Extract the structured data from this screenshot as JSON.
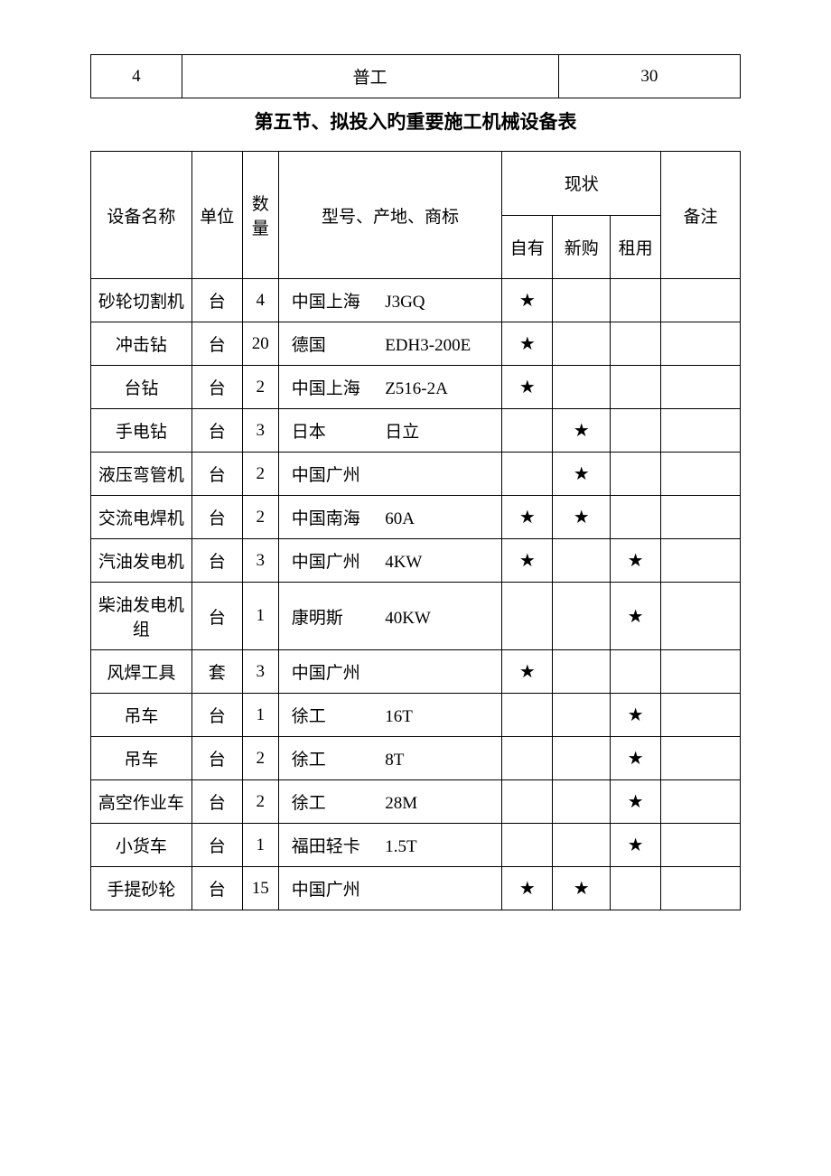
{
  "top_row": {
    "num": "4",
    "label": "普工",
    "value": "30"
  },
  "section_title": "第五节、拟投入旳重要施工机械设备表",
  "headers": {
    "name": "设备名称",
    "unit": "单位",
    "qty": "数量",
    "model": "型号、产地、商标",
    "status": "现状",
    "owned": "自有",
    "new": "新购",
    "rent": "租用",
    "note": "备注"
  },
  "star": "★",
  "rows": [
    {
      "name": "砂轮切割机",
      "unit": "台",
      "qty": "4",
      "origin": "中国上海",
      "model": "J3GQ",
      "owned": true,
      "new": false,
      "rent": false
    },
    {
      "name": "冲击钻",
      "unit": "台",
      "qty": "20",
      "origin": "德国",
      "model": "EDH3-200E",
      "owned": true,
      "new": false,
      "rent": false
    },
    {
      "name": "台钻",
      "unit": "台",
      "qty": "2",
      "origin": "中国上海",
      "model": "Z516-2A",
      "owned": true,
      "new": false,
      "rent": false
    },
    {
      "name": "手电钻",
      "unit": "台",
      "qty": "3",
      "origin": "日本",
      "model": "日立",
      "owned": false,
      "new": true,
      "rent": false
    },
    {
      "name": "液压弯管机",
      "unit": "台",
      "qty": "2",
      "origin": "中国广州",
      "model": "",
      "owned": false,
      "new": true,
      "rent": false
    },
    {
      "name": "交流电焊机",
      "unit": "台",
      "qty": "2",
      "origin": "中国南海",
      "model": "60A",
      "owned": true,
      "new": true,
      "rent": false
    },
    {
      "name": "汽油发电机",
      "unit": "台",
      "qty": "3",
      "origin": "中国广州",
      "model": "4KW",
      "owned": true,
      "new": false,
      "rent": true
    },
    {
      "name": "柴油发电机组",
      "unit": "台",
      "qty": "1",
      "origin": "康明斯",
      "model": "40KW",
      "owned": false,
      "new": false,
      "rent": true
    },
    {
      "name": "风焊工具",
      "unit": "套",
      "qty": "3",
      "origin": "中国广州",
      "model": "",
      "owned": true,
      "new": false,
      "rent": false
    },
    {
      "name": "吊车",
      "unit": "台",
      "qty": "1",
      "origin": "徐工",
      "model": "16T",
      "owned": false,
      "new": false,
      "rent": true
    },
    {
      "name": "吊车",
      "unit": "台",
      "qty": "2",
      "origin": "徐工",
      "model": "8T",
      "owned": false,
      "new": false,
      "rent": true
    },
    {
      "name": "高空作业车",
      "unit": "台",
      "qty": "2",
      "origin": "徐工",
      "model": "28M",
      "owned": false,
      "new": false,
      "rent": true
    },
    {
      "name": "小货车",
      "unit": "台",
      "qty": "1",
      "origin": "福田轻卡",
      "model": "1.5T",
      "owned": false,
      "new": false,
      "rent": true
    },
    {
      "name": "手提砂轮",
      "unit": "台",
      "qty": "15",
      "origin": "中国广州",
      "model": "",
      "owned": true,
      "new": true,
      "rent": false
    }
  ],
  "style": {
    "border_color": "#000000",
    "background_color": "#ffffff",
    "text_color": "#000000",
    "body_fontsize": 19,
    "title_fontsize": 21
  }
}
